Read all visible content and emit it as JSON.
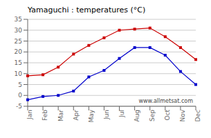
{
  "chart_data": {
    "type": "line",
    "title": "Yamaguchi : temperatures (°C)",
    "categories": [
      "Jan",
      "Feb",
      "Mar",
      "Apr",
      "May",
      "Jun",
      "Jul",
      "Aug",
      "Sep",
      "Oct",
      "Nov",
      "Dec"
    ],
    "series": [
      {
        "color": "#cc0000",
        "marker": "square",
        "values": [
          9,
          9.5,
          13,
          19,
          23,
          26.5,
          30,
          30.5,
          31,
          27,
          22,
          16.5
        ]
      },
      {
        "color": "#0000cc",
        "marker": "square",
        "values": [
          -2,
          -0.5,
          0,
          2,
          8.5,
          11.5,
          17,
          22,
          22,
          18.5,
          11,
          5
        ]
      }
    ],
    "ylim": [
      -5,
      35
    ],
    "yticks": [
      -5,
      0,
      5,
      10,
      15,
      20,
      25,
      30,
      35
    ],
    "grid": true,
    "annotations": [
      "www.allmetsat.com"
    ]
  }
}
